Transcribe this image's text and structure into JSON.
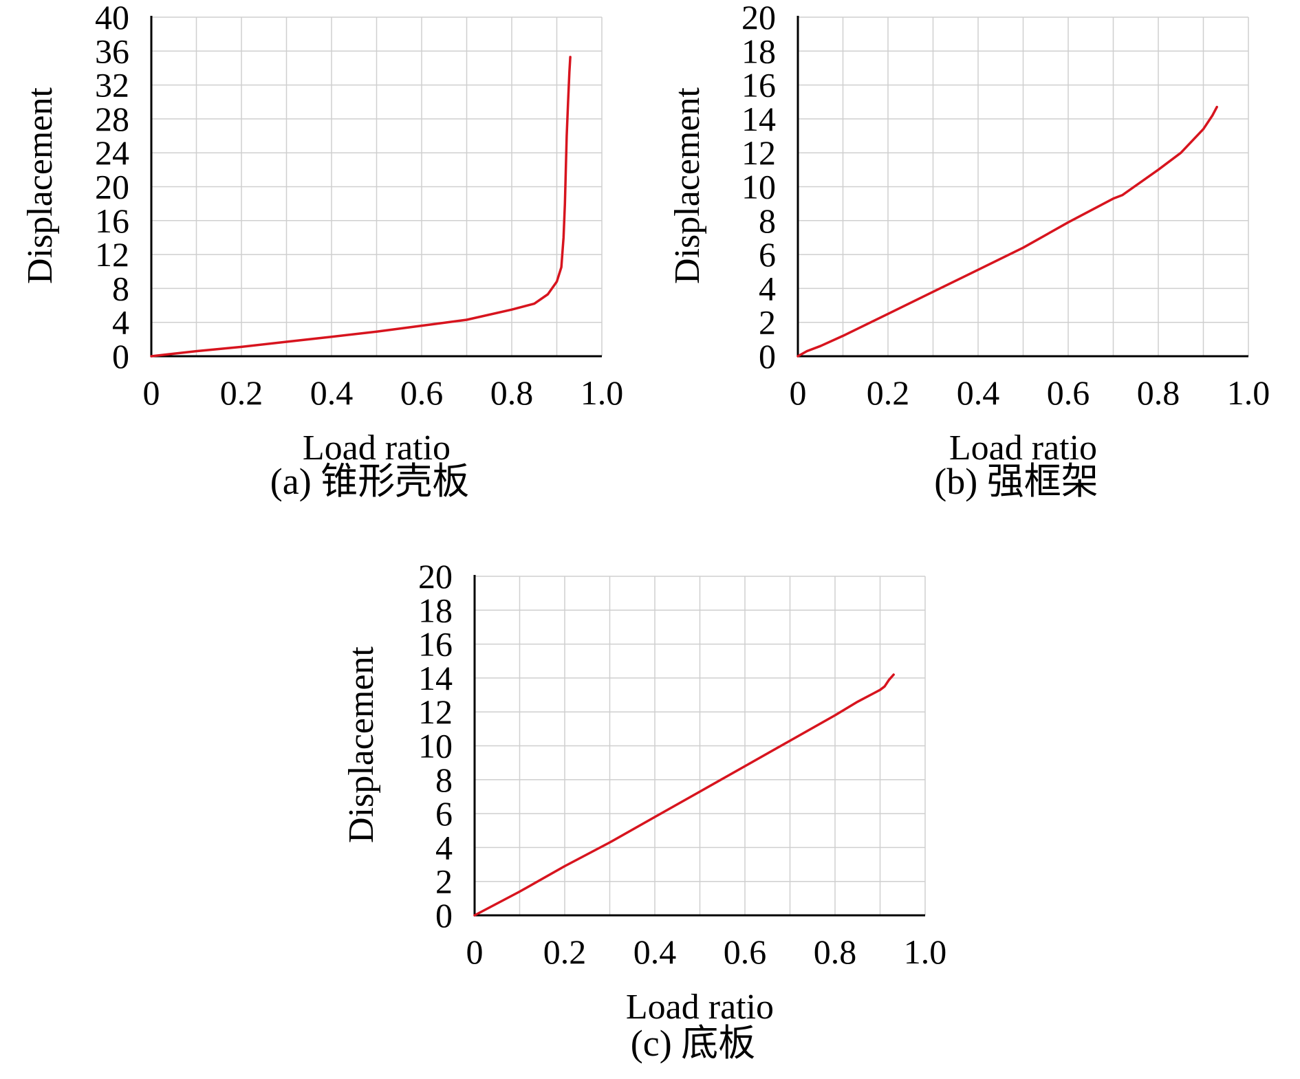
{
  "colors": {
    "line": "#d7141e",
    "grid": "#cfcfcf",
    "axis": "#000000",
    "background": "#ffffff"
  },
  "chart_data": [
    {
      "type": "line",
      "panel": "a",
      "caption": "(a) 锥形壳板",
      "xlabel": "Load ratio",
      "ylabel": "Displacement",
      "xlim": [
        0,
        1.0
      ],
      "ylim": [
        0,
        40
      ],
      "x_ticks": [
        "0",
        "0.2",
        "0.4",
        "0.6",
        "0.8",
        "1.0"
      ],
      "y_ticks": [
        "0",
        "4",
        "8",
        "12",
        "16",
        "20",
        "24",
        "28",
        "32",
        "36",
        "40"
      ],
      "x_grid_step": 0.1,
      "y_grid_step": 4,
      "grid": true,
      "series": [
        {
          "x": [
            0,
            0.1,
            0.2,
            0.3,
            0.4,
            0.5,
            0.6,
            0.7,
            0.8,
            0.85,
            0.88,
            0.9,
            0.91,
            0.915,
            0.918,
            0.92,
            0.922,
            0.925,
            0.928,
            0.93
          ],
          "y": [
            0,
            0.6,
            1.1,
            1.7,
            2.3,
            2.9,
            3.6,
            4.3,
            5.5,
            6.2,
            7.3,
            8.8,
            10.5,
            14,
            18,
            22,
            26,
            30,
            33.5,
            35.3
          ]
        }
      ]
    },
    {
      "type": "line",
      "panel": "b",
      "caption": "(b) 强框架",
      "xlabel": "Load ratio",
      "ylabel": "Displacement",
      "xlim": [
        0,
        1.0
      ],
      "ylim": [
        0,
        20
      ],
      "x_ticks": [
        "0",
        "0.2",
        "0.4",
        "0.6",
        "0.8",
        "1.0"
      ],
      "y_ticks": [
        "0",
        "2",
        "4",
        "6",
        "8",
        "10",
        "12",
        "14",
        "16",
        "18",
        "20"
      ],
      "x_grid_step": 0.1,
      "y_grid_step": 2,
      "grid": true,
      "series": [
        {
          "x": [
            0,
            0.02,
            0.05,
            0.1,
            0.2,
            0.3,
            0.4,
            0.5,
            0.6,
            0.7,
            0.72,
            0.8,
            0.85,
            0.9,
            0.92,
            0.93
          ],
          "y": [
            0,
            0.3,
            0.6,
            1.2,
            2.5,
            3.8,
            5.1,
            6.4,
            7.9,
            9.3,
            9.5,
            11.0,
            12.0,
            13.4,
            14.2,
            14.7
          ]
        }
      ]
    },
    {
      "type": "line",
      "panel": "c",
      "caption": "(c) 底板",
      "xlabel": "Load ratio",
      "ylabel": "Displacement",
      "xlim": [
        0,
        1.0
      ],
      "ylim": [
        0,
        20
      ],
      "x_ticks": [
        "0",
        "0.2",
        "0.4",
        "0.6",
        "0.8",
        "1.0"
      ],
      "y_ticks": [
        "0",
        "2",
        "4",
        "6",
        "8",
        "10",
        "12",
        "14",
        "16",
        "18",
        "20"
      ],
      "x_grid_step": 0.1,
      "y_grid_step": 2,
      "grid": true,
      "series": [
        {
          "x": [
            0,
            0.1,
            0.2,
            0.3,
            0.4,
            0.5,
            0.6,
            0.7,
            0.8,
            0.85,
            0.9,
            0.91,
            0.92,
            0.93
          ],
          "y": [
            0,
            1.4,
            2.9,
            4.3,
            5.8,
            7.3,
            8.8,
            10.3,
            11.8,
            12.6,
            13.3,
            13.5,
            13.9,
            14.2
          ]
        }
      ]
    }
  ]
}
